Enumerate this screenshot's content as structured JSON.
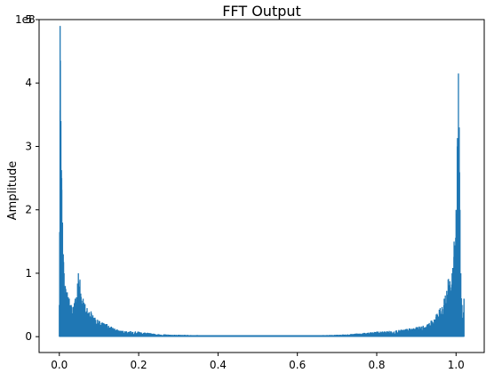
{
  "chart_data": {
    "type": "line",
    "title": "FFT Output",
    "xlabel": "",
    "ylabel": "Amplitude",
    "y_scale_label": "1e8",
    "xlim": [
      -0.051,
      1.071
    ],
    "ylim": [
      -0.25,
      5.0
    ],
    "x_ticks": [
      0.0,
      0.2,
      0.4,
      0.6,
      0.8,
      1.0
    ],
    "x_tick_labels": [
      "0.0",
      "0.2",
      "0.4",
      "0.6",
      "0.8",
      "1.0"
    ],
    "y_ticks": [
      0,
      1,
      2,
      3,
      4,
      5
    ],
    "y_tick_labels": [
      "0",
      "1",
      "2",
      "3",
      "4",
      "5"
    ],
    "grid": false,
    "legend": "none",
    "series": [
      {
        "color": "#1f77b4",
        "envelope": {
          "x": [
            0.0,
            0.002,
            0.004,
            0.006,
            0.008,
            0.01,
            0.012,
            0.015,
            0.02,
            0.025,
            0.03,
            0.04,
            0.048,
            0.052,
            0.06,
            0.07,
            0.08,
            0.09,
            0.1,
            0.12,
            0.15,
            0.2,
            0.25,
            0.3,
            0.4,
            0.5,
            0.6,
            0.7,
            0.75,
            0.8,
            0.85,
            0.9,
            0.93,
            0.95,
            0.96,
            0.97,
            0.98,
            0.99,
            0.995,
            1.0,
            1.003,
            1.006,
            1.008,
            1.01,
            1.012,
            1.015,
            1.018,
            1.02
          ],
          "y": [
            0.5,
            4.9,
            3.4,
            2.5,
            1.8,
            1.3,
            1.0,
            0.8,
            0.7,
            0.6,
            0.5,
            0.6,
            1.0,
            0.9,
            0.6,
            0.45,
            0.4,
            0.3,
            0.25,
            0.2,
            0.1,
            0.08,
            0.04,
            0.03,
            0.02,
            0.02,
            0.02,
            0.03,
            0.05,
            0.08,
            0.1,
            0.15,
            0.2,
            0.35,
            0.45,
            0.6,
            0.9,
            1.0,
            1.5,
            2.0,
            3.0,
            4.15,
            3.3,
            2.0,
            1.0,
            0.5,
            0.3,
            0.6
          ]
        }
      }
    ]
  }
}
